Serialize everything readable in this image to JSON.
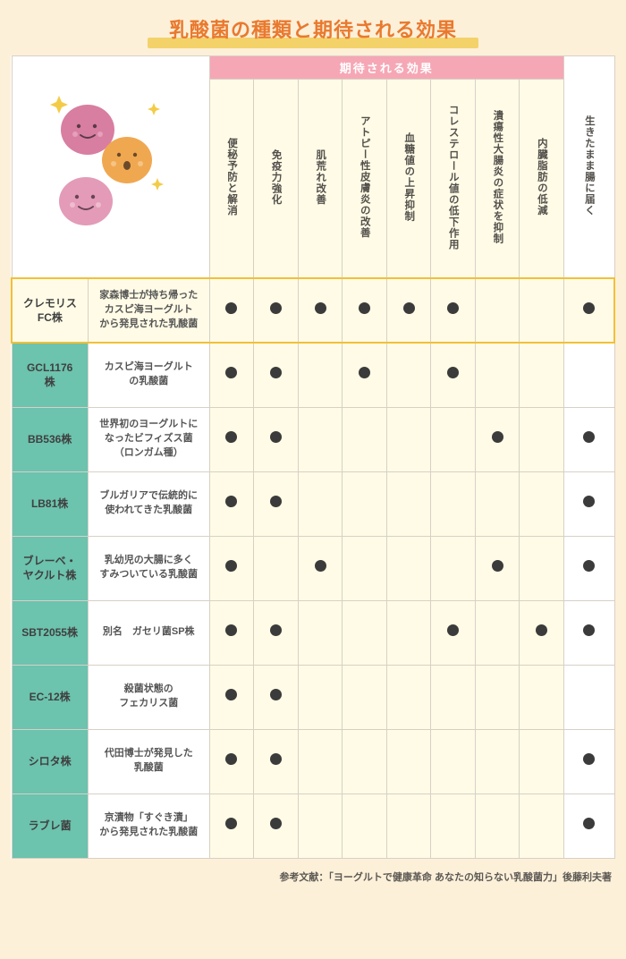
{
  "title": "乳酸菌の種類と期待される効果",
  "effects_header": "期待される効果",
  "effect_columns": [
    "便秘予防と解消",
    "免疫力強化",
    "肌荒れ改善",
    "アトピー性皮膚炎の改善",
    "血糖値の上昇抑制",
    "コレステロール値の低下作用",
    "潰瘍性大腸炎の症状を抑制",
    "内臓脂肪の低減"
  ],
  "last_column": "生きたまま腸に届く",
  "rows": [
    {
      "name": "クレモリス\nFC株",
      "desc": "家森博士が持ち帰った\nカスピ海ヨーグルト\nから発見された乳酸菌",
      "effects": [
        1,
        1,
        1,
        1,
        1,
        1,
        0,
        0
      ],
      "last": 1,
      "highlight": true
    },
    {
      "name": "GCL1176\n株",
      "desc": "カスピ海ヨーグルト\nの乳酸菌",
      "effects": [
        1,
        1,
        0,
        1,
        0,
        1,
        0,
        0
      ],
      "last": 0,
      "highlight": false
    },
    {
      "name": "BB536株",
      "desc": "世界初のヨーグルトに\nなったビフィズス菌\n（ロンガム種）",
      "effects": [
        1,
        1,
        0,
        0,
        0,
        0,
        1,
        0
      ],
      "last": 1,
      "highlight": false
    },
    {
      "name": "LB81株",
      "desc": "ブルガリアで伝統的に\n使われてきた乳酸菌",
      "effects": [
        1,
        1,
        0,
        0,
        0,
        0,
        0,
        0
      ],
      "last": 1,
      "highlight": false
    },
    {
      "name": "ブレーベ・\nヤクルト株",
      "desc": "乳幼児の大腸に多く\nすみついている乳酸菌",
      "effects": [
        1,
        0,
        1,
        0,
        0,
        0,
        1,
        0
      ],
      "last": 1,
      "highlight": false
    },
    {
      "name": "SBT2055株",
      "desc": "別名　ガセリ菌SP株",
      "effects": [
        1,
        1,
        0,
        0,
        0,
        1,
        0,
        1
      ],
      "last": 1,
      "highlight": false
    },
    {
      "name": "EC-12株",
      "desc": "殺菌状態の\nフェカリス菌",
      "effects": [
        1,
        1,
        0,
        0,
        0,
        0,
        0,
        0
      ],
      "last": 0,
      "highlight": false
    },
    {
      "name": "シロタ株",
      "desc": "代田博士が発見した\n乳酸菌",
      "effects": [
        1,
        1,
        0,
        0,
        0,
        0,
        0,
        0
      ],
      "last": 1,
      "highlight": false
    },
    {
      "name": "ラブレ菌",
      "desc": "京漬物「すぐき漬」\nから発見された乳酸菌",
      "effects": [
        1,
        1,
        0,
        0,
        0,
        0,
        0,
        0
      ],
      "last": 1,
      "highlight": false
    }
  ],
  "footnote": "参考文献：「ヨーグルトで健康革命 あなたの知らない乳酸菌力」後藤利夫著",
  "colors": {
    "page_bg": "#fdf0d9",
    "title_text": "#e9792e",
    "title_underline": "#f4d26a",
    "effects_header_bg": "#f6a7b5",
    "rowname_bg": "#6cc3ae",
    "eff_cell_bg": "#fffbe6",
    "highlight_border": "#f2c038",
    "dot": "#3b3b3b",
    "grid_border": "#d8d0c6"
  },
  "illustration": {
    "blobs": [
      {
        "color": "#d87ea1",
        "face": "smile"
      },
      {
        "color": "#f0a850",
        "face": "open"
      },
      {
        "color": "#e39bb8",
        "face": "smile"
      }
    ],
    "sparkle_color": "#f3cc47"
  }
}
